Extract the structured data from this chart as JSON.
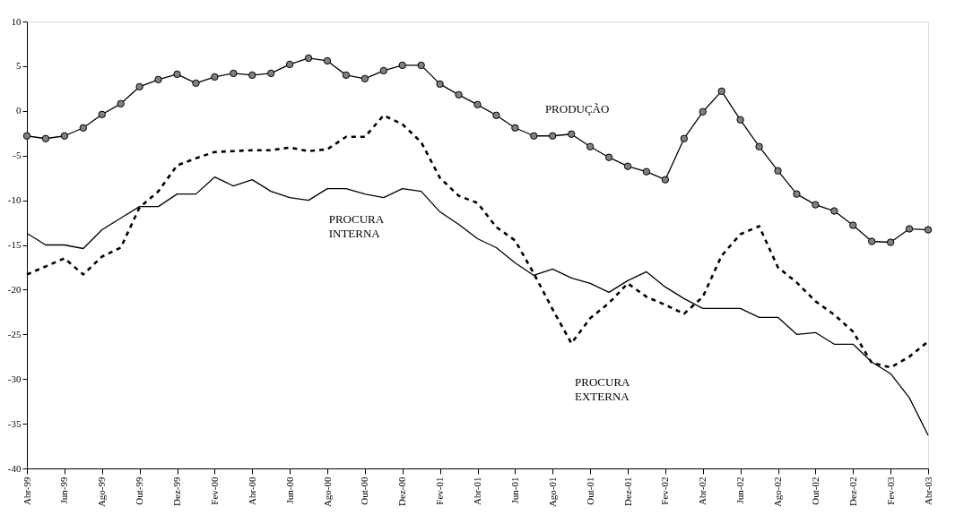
{
  "chart_data": {
    "type": "line",
    "categories": [
      "Abr-99",
      null,
      "Jun-99",
      null,
      "Ago-99",
      null,
      "Out-99",
      null,
      "Dez-99",
      null,
      "Fev-00",
      null,
      "Abr-00",
      null,
      "Jun-00",
      null,
      "Ago-00",
      null,
      "Out-00",
      null,
      "Dez-00",
      null,
      "Fev-01",
      null,
      "Abr-01",
      null,
      "Jun-01",
      null,
      "Ago-01",
      null,
      "Out-01",
      null,
      "Dez-01",
      null,
      "Fev-02",
      null,
      "Abr-02",
      null,
      "Jun-02",
      null,
      "Ago-02",
      null,
      "Out-02",
      null,
      "Dez-02",
      null,
      "Fev-03",
      null,
      "Abr-03"
    ],
    "series": [
      {
        "name": "PRODUÇÃO",
        "color": "#000000",
        "marker": "circle",
        "line_style": "solid",
        "values": [
          -2.8,
          -3.1,
          -2.8,
          -1.9,
          -0.4,
          0.8,
          2.7,
          3.5,
          4.1,
          3.1,
          3.8,
          4.2,
          4.0,
          4.2,
          5.2,
          5.9,
          5.6,
          4.0,
          3.6,
          4.5,
          5.1,
          5.1,
          3.0,
          1.8,
          0.7,
          -0.5,
          -1.9,
          -2.8,
          -2.8,
          -2.6,
          -4.0,
          -5.2,
          -6.2,
          -6.8,
          -7.7,
          -3.1,
          -0.1,
          2.2,
          -1.0,
          -4.0,
          -6.7,
          -9.3,
          -10.5,
          -11.2,
          -12.8,
          -14.6,
          -14.7,
          -13.2,
          -13.3
        ]
      },
      {
        "name": "PROCURA INTERNA",
        "color": "#000000",
        "marker": "none",
        "line_style": "solid",
        "values": [
          -13.7,
          -15.0,
          -15.0,
          -15.4,
          -13.3,
          -12.0,
          -10.7,
          -10.7,
          -9.3,
          -9.3,
          -7.4,
          -8.4,
          -7.7,
          -9.0,
          -9.7,
          -10.0,
          -8.7,
          -8.7,
          -9.3,
          -9.7,
          -8.7,
          -9.0,
          -11.3,
          -12.7,
          -14.3,
          -15.3,
          -17.0,
          -18.4,
          -17.7,
          -18.7,
          -19.3,
          -20.3,
          -19.0,
          -18.0,
          -19.7,
          -21.0,
          -22.1,
          -22.1,
          -22.1,
          -23.1,
          -23.1,
          -25.0,
          -24.8,
          -26.1,
          -26.1,
          -28.1,
          -29.4,
          -32.1,
          -36.3
        ]
      },
      {
        "name": "PROCURA EXTERNA",
        "color": "#000000",
        "marker": "none",
        "line_style": "dashed",
        "values": [
          -18.3,
          -17.4,
          -16.5,
          -18.3,
          -16.3,
          -15.3,
          -10.8,
          -9.0,
          -6.1,
          -5.3,
          -4.6,
          -4.5,
          -4.4,
          -4.4,
          -4.1,
          -4.5,
          -4.3,
          -2.9,
          -2.9,
          -0.5,
          -1.5,
          -3.5,
          -7.5,
          -9.5,
          -10.3,
          -13.0,
          -14.5,
          -18.2,
          -22.2,
          -26.0,
          -23.2,
          -21.5,
          -19.3,
          -20.8,
          -21.7,
          -22.7,
          -20.8,
          -16.2,
          -13.8,
          -12.9,
          -17.5,
          -19.2,
          -21.3,
          -22.8,
          -24.7,
          -28.2,
          -28.7,
          -27.5,
          -25.8
        ]
      }
    ],
    "ylim": [
      -40,
      10
    ],
    "yticks": [
      -40,
      -35,
      -30,
      -25,
      -20,
      -15,
      -10,
      -5,
      0,
      5,
      10
    ],
    "grid": false
  }
}
